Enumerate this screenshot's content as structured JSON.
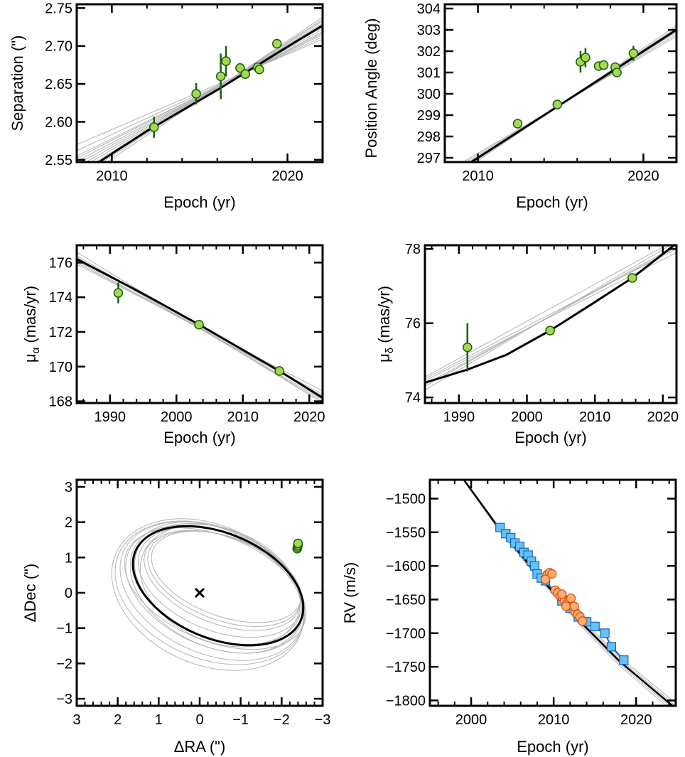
{
  "colors": {
    "model_best": "#000000",
    "model_samples": "#b3b3b3",
    "data_point_fill": "#a6d854",
    "data_point_edge": "#1b5e0b",
    "rv_blue_fill": "#66c2f2",
    "rv_blue_edge": "#1565c0",
    "rv_orange_fill": "#fdae6b",
    "rv_orange_edge": "#d9480f"
  },
  "chart_data": [
    {
      "id": "sep",
      "type": "scatter",
      "xlabel": "Epoch (yr)",
      "ylabel": "Separation (\")",
      "xlim": [
        2008.0,
        2022.0
      ],
      "ylim": [
        2.547,
        2.755
      ],
      "xticks": [
        2010,
        2020
      ],
      "yticks": [
        2.55,
        2.6,
        2.65,
        2.7,
        2.75
      ],
      "ytick_labels": [
        "2.55",
        "2.60",
        "2.65",
        "2.70",
        "2.75"
      ],
      "points": [
        {
          "x": 2012.4,
          "y": 2.593,
          "err": 0.014
        },
        {
          "x": 2014.8,
          "y": 2.637,
          "err": 0.014
        },
        {
          "x": 2016.2,
          "y": 2.66,
          "err": 0.03
        },
        {
          "x": 2016.5,
          "y": 2.68,
          "err": 0.02
        },
        {
          "x": 2017.3,
          "y": 2.671,
          "err": 0.006
        },
        {
          "x": 2017.6,
          "y": 2.663,
          "err": 0.006
        },
        {
          "x": 2018.3,
          "y": 2.672,
          "err": 0.006
        },
        {
          "x": 2018.4,
          "y": 2.669,
          "err": 0.006
        },
        {
          "x": 2019.4,
          "y": 2.703,
          "err": 0.005
        }
      ],
      "best_fit": [
        [
          2008.0,
          2.528
        ],
        [
          2012.0,
          2.588
        ],
        [
          2016.0,
          2.642
        ],
        [
          2020.0,
          2.699
        ],
        [
          2022.0,
          2.727
        ]
      ],
      "samples_at_xlim": [
        [
          2.548,
          2.719
        ],
        [
          2.54,
          2.725
        ],
        [
          2.532,
          2.73
        ],
        [
          2.555,
          2.715
        ],
        [
          2.525,
          2.735
        ],
        [
          2.562,
          2.712
        ],
        [
          2.52,
          2.738
        ],
        [
          2.544,
          2.722
        ],
        [
          2.536,
          2.728
        ],
        [
          2.57,
          2.709
        ],
        [
          2.528,
          2.733
        ],
        [
          2.552,
          2.717
        ]
      ]
    },
    {
      "id": "pa",
      "type": "scatter",
      "xlabel": "Epoch (yr)",
      "ylabel": "Position Angle (deg)",
      "xlim": [
        2008.0,
        2022.0
      ],
      "ylim": [
        296.8,
        304.2
      ],
      "xticks": [
        2010,
        2020
      ],
      "yticks": [
        297,
        298,
        299,
        300,
        301,
        302,
        303,
        304
      ],
      "points": [
        {
          "x": 2012.4,
          "y": 298.6,
          "err": 0.05
        },
        {
          "x": 2014.8,
          "y": 299.5,
          "err": 0.05
        },
        {
          "x": 2016.2,
          "y": 301.5,
          "err": 0.5
        },
        {
          "x": 2016.5,
          "y": 301.7,
          "err": 0.45
        },
        {
          "x": 2017.3,
          "y": 301.3,
          "err": 0.05
        },
        {
          "x": 2017.6,
          "y": 301.35,
          "err": 0.05
        },
        {
          "x": 2018.3,
          "y": 301.25,
          "err": 0.2
        },
        {
          "x": 2018.4,
          "y": 301.0,
          "err": 0.2
        },
        {
          "x": 2019.4,
          "y": 301.9,
          "err": 0.35
        }
      ],
      "best_fit": [
        [
          2008.0,
          296.0
        ],
        [
          2022.0,
          303.0
        ]
      ],
      "samples_at_xlim": [
        [
          296.2,
          302.8
        ],
        [
          295.9,
          303.1
        ],
        [
          296.1,
          302.9
        ],
        [
          295.8,
          303.2
        ],
        [
          296.3,
          302.7
        ],
        [
          296.0,
          303.05
        ],
        [
          295.95,
          302.95
        ]
      ]
    },
    {
      "id": "mua",
      "type": "scatter",
      "xlabel": "Epoch (yr)",
      "ylabel_prefix": "μ",
      "ylabel_sub": "α",
      "ylabel_suffix": " (mas/yr)",
      "xlim": [
        1985.0,
        2022.0
      ],
      "ylim": [
        167.9,
        177.0
      ],
      "xticks": [
        1990,
        2000,
        2010,
        2020
      ],
      "yticks": [
        168,
        170,
        172,
        174,
        176
      ],
      "points": [
        {
          "x": 1991.25,
          "y": 174.25,
          "err": 0.6
        },
        {
          "x": 2003.4,
          "y": 172.42,
          "err": 0.05
        },
        {
          "x": 2015.5,
          "y": 169.75,
          "err": 0.05
        }
      ],
      "best_fit": [
        [
          1985.0,
          176.2
        ],
        [
          1995.0,
          174.2
        ],
        [
          2003.4,
          172.42
        ],
        [
          2015.5,
          169.75
        ],
        [
          2022.0,
          168.2
        ]
      ],
      "samples_at_xlim": [
        [
          176.4,
          168.0
        ],
        [
          176.0,
          168.4
        ],
        [
          176.6,
          167.9
        ],
        [
          175.9,
          168.6
        ],
        [
          176.3,
          168.1
        ],
        [
          176.1,
          168.3
        ]
      ]
    },
    {
      "id": "mud",
      "type": "scatter",
      "xlabel": "Epoch (yr)",
      "ylabel_prefix": "μ",
      "ylabel_sub": "δ",
      "ylabel_suffix": " (mas/yr)",
      "xlim": [
        1985.0,
        2022.0
      ],
      "ylim": [
        73.85,
        78.1
      ],
      "xticks": [
        1990,
        2000,
        2010,
        2020
      ],
      "yticks": [
        74,
        76,
        78
      ],
      "points": [
        {
          "x": 1991.25,
          "y": 75.35,
          "err": 0.65
        },
        {
          "x": 2003.4,
          "y": 75.8,
          "err": 0.03
        },
        {
          "x": 2015.5,
          "y": 77.22,
          "err": 0.03
        }
      ],
      "best_fit": [
        [
          1985.0,
          74.4
        ],
        [
          1991.25,
          74.75
        ],
        [
          1997.0,
          75.15
        ],
        [
          2003.4,
          75.8
        ],
        [
          2009.0,
          76.45
        ],
        [
          2015.5,
          77.22
        ],
        [
          2022.0,
          78.15
        ]
      ],
      "samples_at_xlim": [
        [
          74.3,
          78.1
        ],
        [
          74.5,
          78.0
        ],
        [
          74.2,
          78.2
        ],
        [
          74.45,
          77.9
        ],
        [
          74.35,
          78.05
        ],
        [
          74.55,
          78.25
        ]
      ]
    },
    {
      "id": "orbit",
      "type": "line",
      "xlabel": "ΔRA (\")",
      "ylabel": "ΔDec (\")",
      "xlim": [
        3.0,
        -3.0
      ],
      "ylim": [
        -3.2,
        3.2
      ],
      "xticks": [
        3,
        2,
        1,
        0,
        -1,
        -2,
        -3
      ],
      "xtick_labels": [
        "3",
        "2",
        "1",
        "0",
        "−1",
        "−2",
        "−3"
      ],
      "yticks": [
        -3,
        -2,
        -1,
        0,
        1,
        2,
        3
      ],
      "ytick_labels": [
        "−3",
        "−2",
        "−1",
        "0",
        "1",
        "2",
        "3"
      ],
      "star": {
        "x": 0.0,
        "y": 0.0
      },
      "best_orbit": {
        "cx": -0.45,
        "cy": 0.2,
        "a": 2.25,
        "b": 1.45,
        "angle": 30
      },
      "sample_orbits": [
        {
          "cx": -0.35,
          "cy": 0.1,
          "a": 2.35,
          "b": 1.55,
          "angle": 32
        },
        {
          "cx": -0.3,
          "cy": 0.05,
          "a": 2.45,
          "b": 1.7,
          "angle": 34
        },
        {
          "cx": -0.5,
          "cy": 0.3,
          "a": 2.15,
          "b": 1.35,
          "angle": 28
        },
        {
          "cx": -0.55,
          "cy": 0.35,
          "a": 2.05,
          "b": 1.2,
          "angle": 27
        },
        {
          "cx": -0.4,
          "cy": 0.15,
          "a": 2.3,
          "b": 1.6,
          "angle": 35
        },
        {
          "cx": -0.25,
          "cy": 0.0,
          "a": 2.5,
          "b": 1.8,
          "angle": 33
        },
        {
          "cx": -0.6,
          "cy": 0.4,
          "a": 2.0,
          "b": 1.15,
          "angle": 26
        },
        {
          "cx": -0.45,
          "cy": 0.25,
          "a": 2.2,
          "b": 1.5,
          "angle": 31
        },
        {
          "cx": -0.2,
          "cy": -0.05,
          "a": 2.55,
          "b": 1.9,
          "angle": 36
        },
        {
          "cx": -0.65,
          "cy": 0.45,
          "a": 1.95,
          "b": 1.1,
          "angle": 25
        },
        {
          "cx": -0.38,
          "cy": 0.12,
          "a": 2.4,
          "b": 1.45,
          "angle": 29
        },
        {
          "cx": -0.5,
          "cy": 0.2,
          "a": 2.1,
          "b": 1.55,
          "angle": 33
        }
      ],
      "points": [
        {
          "x": -2.38,
          "y": 1.25
        },
        {
          "x": -2.39,
          "y": 1.3
        },
        {
          "x": -2.4,
          "y": 1.35
        },
        {
          "x": -2.4,
          "y": 1.4
        }
      ]
    },
    {
      "id": "rv",
      "type": "scatter",
      "xlabel": "Epoch (yr)",
      "ylabel": "RV (m/s)",
      "xlim": [
        1995.0,
        2024.8
      ],
      "ylim": [
        -1808,
        -1472
      ],
      "xticks": [
        2000,
        2010,
        2020
      ],
      "yticks": [
        -1500,
        -1550,
        -1600,
        -1650,
        -1700,
        -1750,
        -1800
      ],
      "ytick_labels": [
        "−1500",
        "−1550",
        "−1600",
        "−1650",
        "−1700",
        "−1750",
        "−1800"
      ],
      "best_fit": [
        [
          1995.0,
          -1390
        ],
        [
          1999.0,
          -1470
        ],
        [
          2003.0,
          -1538
        ],
        [
          2008.0,
          -1613
        ],
        [
          2013.0,
          -1680
        ],
        [
          2018.0,
          -1742
        ],
        [
          2024.8,
          -1812
        ]
      ],
      "samples_offsets": [
        4,
        -4,
        8,
        -8
      ],
      "series": [
        {
          "name": "",
          "marker": "square",
          "points": [
            [
              2003.5,
              -1543
            ],
            [
              2004.2,
              -1552
            ],
            [
              2004.8,
              -1558
            ],
            [
              2005.3,
              -1566
            ],
            [
              2005.9,
              -1571
            ],
            [
              2006.4,
              -1580
            ],
            [
              2006.9,
              -1584
            ],
            [
              2007.3,
              -1593
            ],
            [
              2007.7,
              -1600
            ],
            [
              2008.0,
              -1612
            ],
            [
              2008.5,
              -1618
            ],
            [
              2009.0,
              -1622
            ],
            [
              2011.0,
              -1652
            ],
            [
              2012.0,
              -1663
            ],
            [
              2013.0,
              -1676
            ],
            [
              2014.0,
              -1683
            ],
            [
              2015.0,
              -1690
            ],
            [
              2016.2,
              -1700
            ],
            [
              2017.0,
              -1720
            ],
            [
              2018.5,
              -1740
            ]
          ]
        },
        {
          "name": "",
          "marker": "circle",
          "points": [
            [
              2009.2,
              -1613
            ],
            [
              2009.5,
              -1610
            ],
            [
              2009.8,
              -1612
            ],
            [
              2009.0,
              -1620
            ],
            [
              2010.2,
              -1636
            ],
            [
              2010.5,
              -1640
            ],
            [
              2010.8,
              -1645
            ],
            [
              2011.1,
              -1648
            ],
            [
              2011.3,
              -1652
            ],
            [
              2011.6,
              -1656
            ],
            [
              2011.9,
              -1650
            ],
            [
              2012.1,
              -1648
            ],
            [
              2012.3,
              -1662
            ],
            [
              2012.6,
              -1668
            ],
            [
              2012.9,
              -1672
            ],
            [
              2013.2,
              -1676
            ],
            [
              2013.5,
              -1682
            ],
            [
              2011.0,
              -1642
            ],
            [
              2011.5,
              -1660
            ],
            [
              2012.5,
              -1660
            ]
          ]
        }
      ]
    }
  ]
}
